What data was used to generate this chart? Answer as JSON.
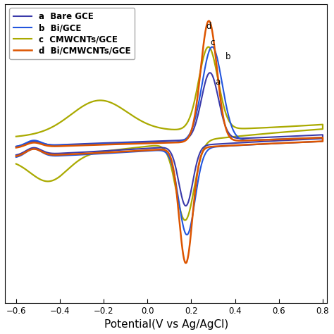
{
  "title": "",
  "xlabel": "Potential(V vs Ag/AgCl)",
  "ylabel": "",
  "xlim": [
    -0.65,
    0.82
  ],
  "ylim": [
    -1.3,
    1.3
  ],
  "legend_labels": [
    "a  Bare GCE",
    "b  Bi/GCE",
    "c  CMWCNTs/GCE",
    "d  Bi/CMWCNTs/GCE"
  ],
  "curve_colors": {
    "a": "#3a3aaa",
    "b": "#2255dd",
    "c": "#aaaa00",
    "d": "#dd5500"
  },
  "background_color": "#ffffff",
  "xticks": [
    -0.6,
    -0.4,
    -0.2,
    0.0,
    0.2,
    0.4,
    0.6,
    0.8
  ],
  "xlabel_fontsize": 11
}
